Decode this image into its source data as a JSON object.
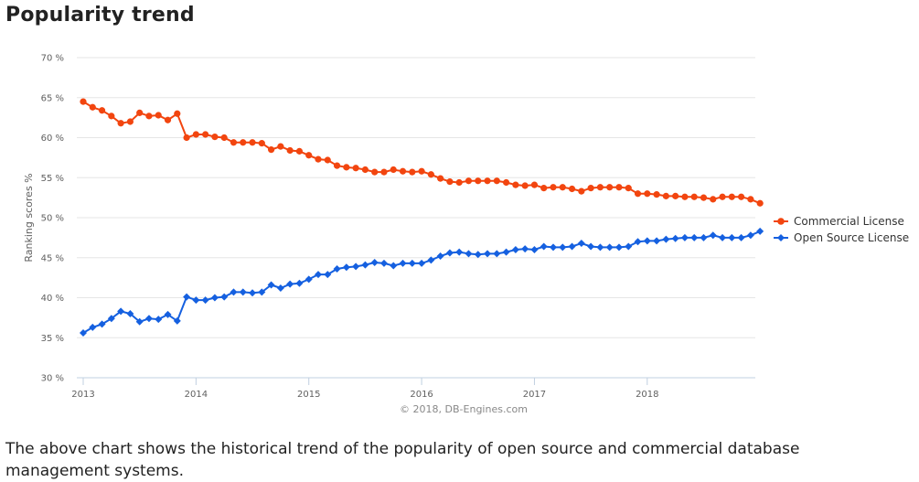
{
  "heading": "Popularity trend",
  "description": "The above chart shows the historical trend of the popularity of open source and commercial database management systems.",
  "chart_data": {
    "type": "line",
    "ylabel": "Ranking scores %",
    "credit": "© 2018, DB-Engines.com",
    "ylim": [
      30,
      70
    ],
    "y_ticks": [
      30,
      35,
      40,
      45,
      50,
      55,
      60,
      65,
      70
    ],
    "y_tick_labels": [
      "30 %",
      "35 %",
      "40 %",
      "45 %",
      "50 %",
      "55 %",
      "60 %",
      "65 %",
      "70 %"
    ],
    "x_ticks": [
      "2013",
      "2014",
      "2015",
      "2016",
      "2017",
      "2018"
    ],
    "grid": "horizontal",
    "legend_position": "right",
    "x_start": "2013-01",
    "series": [
      {
        "name": "Commercial License",
        "color": "#f2450f",
        "marker": "circle",
        "values": [
          64.5,
          63.8,
          63.4,
          62.7,
          61.8,
          62.0,
          63.1,
          62.7,
          62.8,
          62.2,
          63.0,
          60.0,
          60.4,
          60.4,
          60.1,
          60.0,
          59.4,
          59.4,
          59.4,
          59.3,
          58.5,
          58.9,
          58.4,
          58.3,
          57.8,
          57.3,
          57.2,
          56.5,
          56.3,
          56.2,
          56.0,
          55.7,
          55.7,
          56.0,
          55.8,
          55.7,
          55.8,
          55.4,
          54.9,
          54.5,
          54.4,
          54.6,
          54.6,
          54.6,
          54.6,
          54.4,
          54.1,
          54.0,
          54.1,
          53.7,
          53.8,
          53.8,
          53.6,
          53.3,
          53.7,
          53.8,
          53.8,
          53.8,
          53.7,
          53.0,
          53.0,
          52.9,
          52.7,
          52.7,
          52.6,
          52.6,
          52.5,
          52.3,
          52.6,
          52.6,
          52.6,
          52.3,
          51.8
        ]
      },
      {
        "name": "Open Source License",
        "color": "#1560e0",
        "marker": "diamond",
        "values": [
          35.6,
          36.3,
          36.7,
          37.4,
          38.3,
          38.0,
          37.0,
          37.4,
          37.3,
          37.9,
          37.1,
          40.1,
          39.7,
          39.7,
          40.0,
          40.1,
          40.7,
          40.7,
          40.6,
          40.7,
          41.6,
          41.2,
          41.7,
          41.8,
          42.3,
          42.9,
          42.9,
          43.6,
          43.8,
          43.9,
          44.1,
          44.4,
          44.3,
          44.0,
          44.3,
          44.3,
          44.3,
          44.7,
          45.2,
          45.6,
          45.7,
          45.5,
          45.4,
          45.5,
          45.5,
          45.7,
          46.0,
          46.1,
          46.0,
          46.4,
          46.3,
          46.3,
          46.4,
          46.8,
          46.4,
          46.3,
          46.3,
          46.3,
          46.4,
          47.0,
          47.1,
          47.1,
          47.3,
          47.4,
          47.5,
          47.5,
          47.5,
          47.8,
          47.5,
          47.5,
          47.5,
          47.8,
          48.3
        ]
      }
    ]
  }
}
